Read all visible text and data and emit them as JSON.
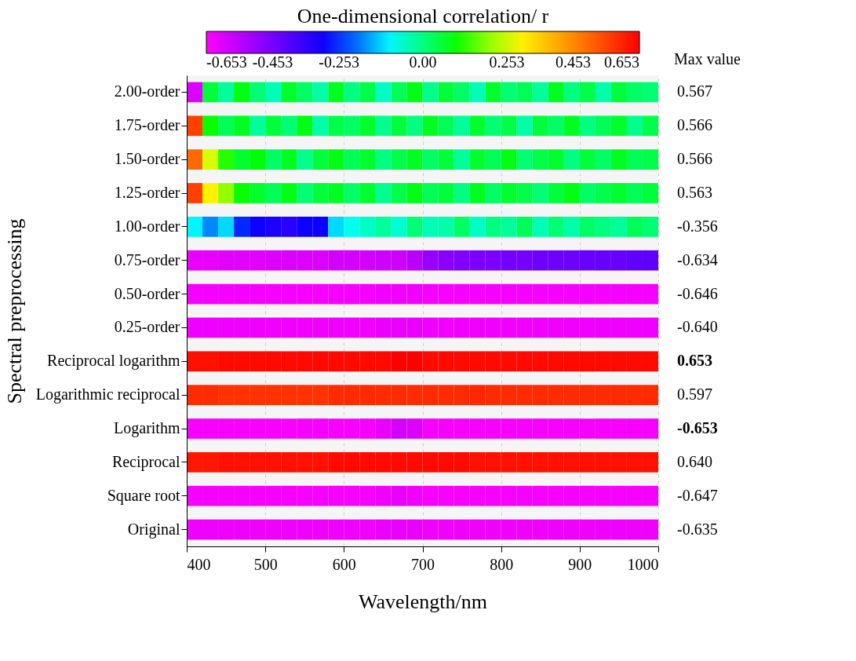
{
  "chart_data": {
    "type": "heatmap",
    "xlabel": "Wavelength/nm",
    "ylabel": "Spectral preprocessing",
    "clabel": "One-dimensional correlation/ r",
    "y2label": "Max value",
    "x": [
      410,
      430,
      450,
      470,
      490,
      510,
      530,
      550,
      570,
      590,
      610,
      630,
      650,
      670,
      690,
      710,
      730,
      750,
      770,
      790,
      810,
      830,
      850,
      870,
      890,
      910,
      930,
      950,
      970,
      990
    ],
    "xlim": [
      400,
      1000
    ],
    "xticks": [
      400,
      500,
      600,
      700,
      800,
      900,
      1000
    ],
    "grid": "x",
    "clim": [
      -0.653,
      0.653
    ],
    "cticks": [
      -0.653,
      -0.453,
      -0.253,
      {
        "value": 0,
        "label": "0.00"
      },
      0.253,
      0.453,
      0.653
    ],
    "y_categories": [
      "2.00-order",
      "1.75-order",
      "1.50-order",
      "1.25-order",
      "1.00-order",
      "0.75-order",
      "0.50-order",
      "0.25-order",
      "Reciprocal logarithm",
      "Logarithmic reciprocal",
      "Logarithm",
      "Reciprocal",
      "Square root",
      "Original"
    ],
    "y2_categories": [
      "0.567",
      "0.566",
      "0.566",
      "0.563",
      "-0.356",
      "-0.634",
      "-0.646",
      "-0.640",
      "0.653",
      "0.597",
      "-0.653",
      "0.640",
      "-0.647",
      "-0.635"
    ],
    "cells": [
      [
        -0.6,
        0.05,
        -0.02,
        0.08,
        0.01,
        -0.04,
        0.06,
        0.02,
        -0.03,
        0.07,
        0.0,
        0.04,
        -0.05,
        0.03,
        0.08,
        -0.01,
        0.05,
        0.02,
        -0.04,
        0.06,
        0.01,
        0.03,
        -0.02,
        0.07,
        0.0,
        0.04,
        -0.03,
        0.05,
        0.02,
        0.01
      ],
      [
        0.56,
        0.1,
        0.03,
        0.07,
        -0.02,
        0.05,
        0.01,
        0.08,
        -0.03,
        0.04,
        0.02,
        0.06,
        -0.01,
        0.05,
        0.0,
        0.07,
        0.03,
        -0.02,
        0.06,
        0.01,
        0.04,
        -0.03,
        0.05,
        0.02,
        0.07,
        0.0,
        0.03,
        0.06,
        -0.01,
        0.04
      ],
      [
        0.5,
        0.25,
        0.12,
        0.06,
        0.09,
        0.02,
        0.07,
        -0.01,
        0.05,
        0.08,
        0.03,
        0.06,
        0.0,
        0.04,
        0.07,
        0.02,
        0.05,
        -0.02,
        0.06,
        0.03,
        0.08,
        0.01,
        0.04,
        0.06,
        0.0,
        0.05,
        0.02,
        0.07,
        0.03,
        0.04
      ],
      [
        0.56,
        0.3,
        0.2,
        0.1,
        0.06,
        0.03,
        0.08,
        0.01,
        0.05,
        0.07,
        0.02,
        0.06,
        -0.01,
        0.04,
        0.08,
        0.03,
        0.05,
        0.0,
        0.07,
        0.02,
        0.06,
        0.04,
        0.01,
        0.05,
        0.08,
        0.02,
        0.04,
        0.06,
        0.03,
        0.05
      ],
      [
        -0.1,
        -0.18,
        -0.12,
        -0.25,
        -0.3,
        -0.32,
        -0.34,
        -0.3,
        -0.3,
        -0.12,
        -0.08,
        -0.05,
        -0.02,
        -0.06,
        0.01,
        -0.04,
        -0.03,
        0.02,
        -0.05,
        0.0,
        -0.02,
        0.03,
        -0.04,
        0.01,
        -0.03,
        0.02,
        0.0,
        -0.02,
        0.03,
        0.01
      ],
      [
        -0.62,
        -0.62,
        -0.61,
        -0.61,
        -0.61,
        -0.6,
        -0.6,
        -0.6,
        -0.6,
        -0.59,
        -0.59,
        -0.59,
        -0.58,
        -0.58,
        -0.55,
        -0.5,
        -0.48,
        -0.47,
        -0.46,
        -0.46,
        -0.45,
        -0.45,
        -0.44,
        -0.44,
        -0.44,
        -0.43,
        -0.43,
        -0.43,
        -0.42,
        -0.42
      ],
      [
        -0.64,
        -0.64,
        -0.64,
        -0.64,
        -0.64,
        -0.64,
        -0.64,
        -0.64,
        -0.64,
        -0.64,
        -0.64,
        -0.64,
        -0.63,
        -0.63,
        -0.63,
        -0.64,
        -0.64,
        -0.64,
        -0.64,
        -0.64,
        -0.64,
        -0.64,
        -0.64,
        -0.64,
        -0.64,
        -0.64,
        -0.64,
        -0.64,
        -0.64,
        -0.64
      ],
      [
        -0.63,
        -0.63,
        -0.63,
        -0.63,
        -0.63,
        -0.63,
        -0.63,
        -0.63,
        -0.63,
        -0.63,
        -0.63,
        -0.63,
        -0.62,
        -0.62,
        -0.62,
        -0.63,
        -0.63,
        -0.63,
        -0.63,
        -0.63,
        -0.63,
        -0.63,
        -0.63,
        -0.63,
        -0.63,
        -0.63,
        -0.63,
        -0.63,
        -0.63,
        -0.63
      ],
      [
        0.63,
        0.63,
        0.64,
        0.64,
        0.64,
        0.64,
        0.64,
        0.64,
        0.64,
        0.64,
        0.64,
        0.64,
        0.64,
        0.653,
        0.653,
        0.64,
        0.64,
        0.64,
        0.64,
        0.64,
        0.64,
        0.64,
        0.64,
        0.64,
        0.64,
        0.64,
        0.64,
        0.64,
        0.64,
        0.64
      ],
      [
        0.59,
        0.59,
        0.58,
        0.58,
        0.58,
        0.58,
        0.58,
        0.58,
        0.58,
        0.59,
        0.59,
        0.59,
        0.59,
        0.59,
        0.59,
        0.59,
        0.59,
        0.59,
        0.597,
        0.59,
        0.59,
        0.59,
        0.59,
        0.59,
        0.59,
        0.59,
        0.59,
        0.59,
        0.59,
        0.59
      ],
      [
        -0.64,
        -0.64,
        -0.64,
        -0.64,
        -0.64,
        -0.64,
        -0.64,
        -0.64,
        -0.64,
        -0.64,
        -0.64,
        -0.64,
        -0.62,
        -0.59,
        -0.6,
        -0.64,
        -0.64,
        -0.64,
        -0.64,
        -0.64,
        -0.64,
        -0.64,
        -0.64,
        -0.64,
        -0.64,
        -0.64,
        -0.64,
        -0.64,
        -0.64,
        -0.64
      ],
      [
        0.62,
        0.62,
        0.63,
        0.63,
        0.63,
        0.63,
        0.63,
        0.63,
        0.63,
        0.64,
        0.64,
        0.64,
        0.64,
        0.64,
        0.64,
        0.64,
        0.64,
        0.64,
        0.63,
        0.63,
        0.63,
        0.63,
        0.63,
        0.63,
        0.63,
        0.63,
        0.63,
        0.63,
        0.63,
        0.63
      ],
      [
        -0.64,
        -0.64,
        -0.64,
        -0.64,
        -0.64,
        -0.64,
        -0.64,
        -0.64,
        -0.64,
        -0.64,
        -0.64,
        -0.64,
        -0.63,
        -0.62,
        -0.63,
        -0.64,
        -0.64,
        -0.64,
        -0.64,
        -0.64,
        -0.64,
        -0.64,
        -0.64,
        -0.64,
        -0.64,
        -0.64,
        -0.64,
        -0.64,
        -0.64,
        -0.64
      ],
      [
        -0.63,
        -0.63,
        -0.63,
        -0.63,
        -0.63,
        -0.63,
        -0.63,
        -0.63,
        -0.63,
        -0.63,
        -0.63,
        -0.63,
        -0.62,
        -0.62,
        -0.62,
        -0.63,
        -0.63,
        -0.63,
        -0.63,
        -0.63,
        -0.63,
        -0.63,
        -0.63,
        -0.63,
        -0.63,
        -0.63,
        -0.63,
        -0.63,
        -0.63,
        -0.63
      ]
    ]
  }
}
